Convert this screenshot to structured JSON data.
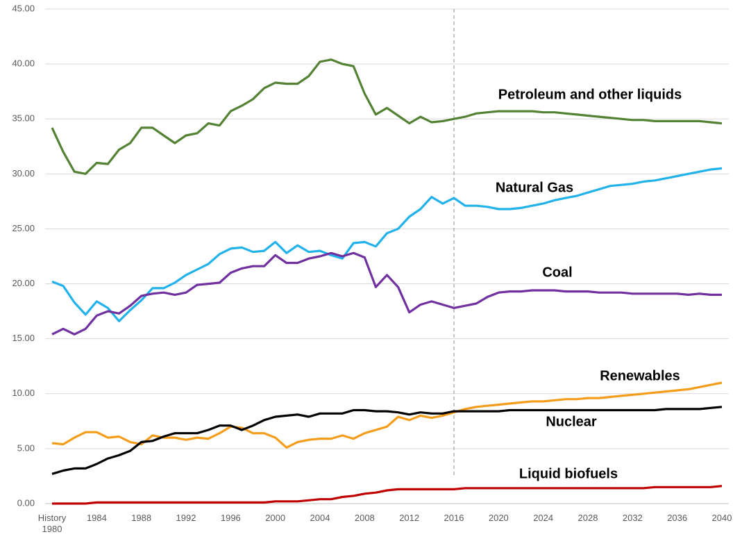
{
  "chart_data": {
    "type": "line",
    "categories": [
      "History\n1980",
      null,
      null,
      null,
      "1984",
      null,
      null,
      null,
      "1988",
      null,
      null,
      null,
      "1992",
      null,
      null,
      null,
      "1996",
      null,
      null,
      null,
      "2000",
      null,
      null,
      null,
      "2004",
      null,
      null,
      null,
      "2008",
      null,
      null,
      null,
      "2012",
      null,
      null,
      null,
      "2016",
      null,
      null,
      null,
      "2020",
      null,
      null,
      null,
      "2024",
      null,
      null,
      null,
      "2028",
      null,
      null,
      null,
      "2032",
      null,
      null,
      null,
      "2036",
      null,
      null,
      null,
      "2040"
    ],
    "series": [
      {
        "name": "Petroleum and other liquids",
        "color": "#548235",
        "values": [
          34.2,
          32.0,
          30.2,
          30.0,
          31.0,
          30.9,
          32.2,
          32.8,
          34.2,
          34.2,
          33.5,
          32.8,
          33.5,
          33.7,
          34.6,
          34.4,
          35.7,
          36.2,
          36.8,
          37.8,
          38.3,
          38.2,
          38.2,
          38.9,
          40.2,
          40.4,
          40.0,
          39.8,
          37.3,
          35.4,
          36.0,
          35.3,
          34.6,
          35.2,
          34.7,
          34.8,
          35.0,
          35.2,
          35.5,
          35.6,
          35.7,
          35.7,
          35.7,
          35.7,
          35.6,
          35.6,
          35.5,
          35.4,
          35.3,
          35.2,
          35.1,
          35.0,
          34.9,
          34.9,
          34.8,
          34.8,
          34.8,
          34.8,
          34.8,
          34.7,
          34.6
        ]
      },
      {
        "name": "Natural Gas",
        "color": "#21b1eb",
        "values": [
          20.2,
          19.8,
          18.3,
          17.2,
          18.4,
          17.8,
          16.6,
          17.6,
          18.5,
          19.6,
          19.6,
          20.1,
          20.8,
          21.3,
          21.8,
          22.7,
          23.2,
          23.3,
          22.9,
          23.0,
          23.8,
          22.8,
          23.5,
          22.9,
          23.0,
          22.6,
          22.3,
          23.7,
          23.8,
          23.4,
          24.6,
          25.0,
          26.1,
          26.8,
          27.9,
          27.3,
          27.8,
          27.1,
          27.1,
          27.0,
          26.8,
          26.8,
          26.9,
          27.1,
          27.3,
          27.6,
          27.8,
          28.0,
          28.3,
          28.6,
          28.9,
          29.0,
          29.1,
          29.3,
          29.4,
          29.6,
          29.8,
          30.0,
          30.2,
          30.4,
          30.5
        ]
      },
      {
        "name": "Coal",
        "color": "#7030a0",
        "values": [
          15.4,
          15.9,
          15.4,
          15.9,
          17.1,
          17.5,
          17.3,
          18.0,
          18.9,
          19.1,
          19.2,
          19.0,
          19.2,
          19.9,
          20.0,
          20.1,
          21.0,
          21.4,
          21.6,
          21.6,
          22.6,
          21.9,
          21.9,
          22.3,
          22.5,
          22.8,
          22.5,
          22.8,
          22.4,
          19.7,
          20.8,
          19.7,
          17.4,
          18.1,
          18.4,
          18.1,
          17.8,
          18.0,
          18.2,
          18.8,
          19.2,
          19.3,
          19.3,
          19.4,
          19.4,
          19.4,
          19.3,
          19.3,
          19.3,
          19.2,
          19.2,
          19.2,
          19.1,
          19.1,
          19.1,
          19.1,
          19.1,
          19.0,
          19.1,
          19.0,
          19.0
        ]
      },
      {
        "name": "Renewables",
        "color": "#f59d1b",
        "values": [
          5.5,
          5.4,
          6.0,
          6.5,
          6.5,
          6.0,
          6.1,
          5.6,
          5.4,
          6.2,
          6.0,
          6.0,
          5.8,
          6.0,
          5.9,
          6.4,
          7.0,
          6.9,
          6.4,
          6.4,
          6.0,
          5.1,
          5.6,
          5.8,
          5.9,
          5.9,
          6.2,
          5.9,
          6.4,
          6.7,
          7.0,
          7.9,
          7.6,
          8.0,
          7.8,
          8.0,
          8.3,
          8.6,
          8.8,
          8.9,
          9.0,
          9.1,
          9.2,
          9.3,
          9.3,
          9.4,
          9.5,
          9.5,
          9.6,
          9.6,
          9.7,
          9.8,
          9.9,
          10.0,
          10.1,
          10.2,
          10.3,
          10.4,
          10.6,
          10.8,
          11.0
        ]
      },
      {
        "name": "Nuclear",
        "color": "#000000",
        "values": [
          2.7,
          3.0,
          3.2,
          3.2,
          3.6,
          4.1,
          4.4,
          4.8,
          5.6,
          5.7,
          6.1,
          6.4,
          6.4,
          6.4,
          6.7,
          7.1,
          7.1,
          6.7,
          7.1,
          7.6,
          7.9,
          8.0,
          8.1,
          7.9,
          8.2,
          8.2,
          8.2,
          8.5,
          8.5,
          8.4,
          8.4,
          8.3,
          8.1,
          8.3,
          8.2,
          8.2,
          8.4,
          8.4,
          8.4,
          8.4,
          8.4,
          8.5,
          8.5,
          8.5,
          8.5,
          8.5,
          8.5,
          8.5,
          8.5,
          8.5,
          8.5,
          8.5,
          8.5,
          8.5,
          8.5,
          8.6,
          8.6,
          8.6,
          8.6,
          8.7,
          8.8
        ]
      },
      {
        "name": "Liquid biofuels",
        "color": "#c00000",
        "values": [
          0,
          0,
          0,
          0,
          0.1,
          0.1,
          0.1,
          0.1,
          0.1,
          0.1,
          0.1,
          0.1,
          0.1,
          0.1,
          0.1,
          0.1,
          0.1,
          0.1,
          0.1,
          0.1,
          0.2,
          0.2,
          0.2,
          0.3,
          0.4,
          0.4,
          0.6,
          0.7,
          0.9,
          1.0,
          1.2,
          1.3,
          1.3,
          1.3,
          1.3,
          1.3,
          1.3,
          1.4,
          1.4,
          1.4,
          1.4,
          1.4,
          1.4,
          1.4,
          1.4,
          1.4,
          1.4,
          1.4,
          1.4,
          1.4,
          1.4,
          1.4,
          1.4,
          1.4,
          1.5,
          1.5,
          1.5,
          1.5,
          1.5,
          1.5,
          1.6
        ]
      }
    ],
    "ylim": [
      0,
      45
    ],
    "yticks": [
      {
        "value": 0,
        "label": "0.00"
      },
      {
        "value": 5,
        "label": "5.00"
      },
      {
        "value": 10,
        "label": "10.00"
      },
      {
        "value": 15,
        "label": "15.00"
      },
      {
        "value": 20,
        "label": "20.00"
      },
      {
        "value": 25,
        "label": "25.00"
      },
      {
        "value": 30,
        "label": "30.00"
      },
      {
        "value": 35,
        "label": "35.00"
      },
      {
        "value": 40,
        "label": "40.00"
      },
      {
        "value": 45,
        "label": "45.00"
      }
    ],
    "grid": true,
    "vertical_line_at": "2016"
  }
}
